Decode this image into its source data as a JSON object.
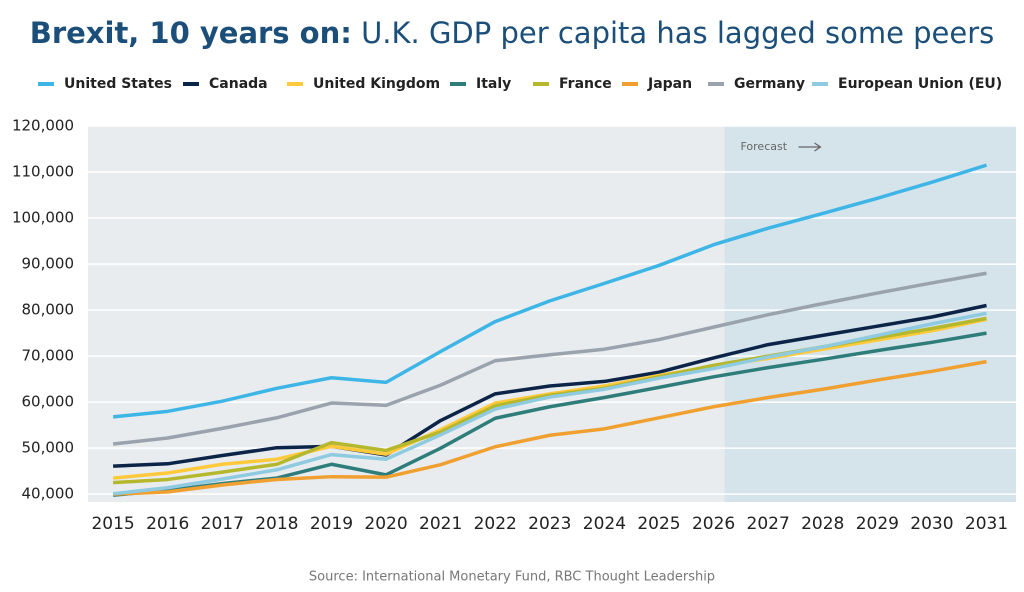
{
  "chart_data": {
    "type": "line",
    "title_lead": "Brexit, 10 years on:",
    "title": "U.K. GDP per capita has lagged some peers",
    "source": "Source: International Monetary Fund, RBC Thought Leadership",
    "annotation": "Forecast",
    "forecast_start": 2026.2,
    "x": [
      2015,
      2016,
      2017,
      2018,
      2019,
      2020,
      2021,
      2022,
      2023,
      2024,
      2025,
      2026,
      2027,
      2028,
      2029,
      2030,
      2031
    ],
    "xlim": [
      2014.54,
      2031.54
    ],
    "ylim": [
      38300,
      120000
    ],
    "yticks": [
      {
        "value": 40000,
        "label": "40,000"
      },
      {
        "value": 50000,
        "label": "50,000"
      },
      {
        "value": 60000,
        "label": "60,000"
      },
      {
        "value": 70000,
        "label": "70,000"
      },
      {
        "value": 80000,
        "label": "80,000"
      },
      {
        "value": 90000,
        "label": "90,000"
      },
      {
        "value": 100000,
        "label": "100,000"
      },
      {
        "value": 110000,
        "label": "110,000"
      },
      {
        "value": 120000,
        "label": "120,000"
      }
    ],
    "grid": true,
    "series": [
      {
        "name": "United States",
        "color": "#3db5e6",
        "values": [
          56800,
          58000,
          60200,
          63000,
          65300,
          64300,
          71000,
          77500,
          82000,
          85800,
          89700,
          94200,
          97800,
          101000,
          104300,
          107800,
          111500
        ]
      },
      {
        "name": "Canada",
        "color": "#0b2447",
        "values": [
          46100,
          46600,
          48400,
          50100,
          50400,
          48500,
          56000,
          61800,
          63500,
          64500,
          66500,
          69600,
          72500,
          74500,
          76500,
          78500,
          81000
        ]
      },
      {
        "name": "United Kingdom",
        "color": "#ffc93c",
        "values": [
          43500,
          44600,
          46500,
          47600,
          50400,
          48700,
          54000,
          59800,
          61800,
          63500,
          65800,
          67800,
          69500,
          71500,
          73500,
          75500,
          78000
        ]
      },
      {
        "name": "Italy",
        "color": "#2e7d7a",
        "values": [
          39800,
          40800,
          42300,
          43500,
          46500,
          44200,
          50000,
          56500,
          59000,
          61000,
          63200,
          65500,
          67500,
          69300,
          71200,
          73000,
          75000
        ]
      },
      {
        "name": "France",
        "color": "#b5b82d",
        "values": [
          42500,
          43200,
          44800,
          46500,
          51200,
          49500,
          53500,
          59200,
          61500,
          63000,
          65500,
          68000,
          70000,
          72000,
          74000,
          76000,
          78200
        ]
      },
      {
        "name": "Japan",
        "color": "#f0a030",
        "values": [
          40000,
          40500,
          42000,
          43200,
          43800,
          43700,
          46400,
          50300,
          52800,
          54200,
          56600,
          59000,
          61000,
          62800,
          64800,
          66700,
          68800
        ]
      },
      {
        "name": "Germany",
        "color": "#9aa3ad",
        "values": [
          50900,
          52200,
          54300,
          56600,
          59800,
          59300,
          63700,
          69000,
          70300,
          71500,
          73600,
          76300,
          79000,
          81400,
          83700,
          85900,
          88000
        ]
      },
      {
        "name": "European Union (EU)",
        "color": "#8ecae0",
        "values": [
          40100,
          41400,
          43300,
          45300,
          48600,
          47600,
          52900,
          58500,
          61100,
          62800,
          65200,
          67300,
          69800,
          72000,
          74500,
          77000,
          79300
        ]
      }
    ]
  }
}
